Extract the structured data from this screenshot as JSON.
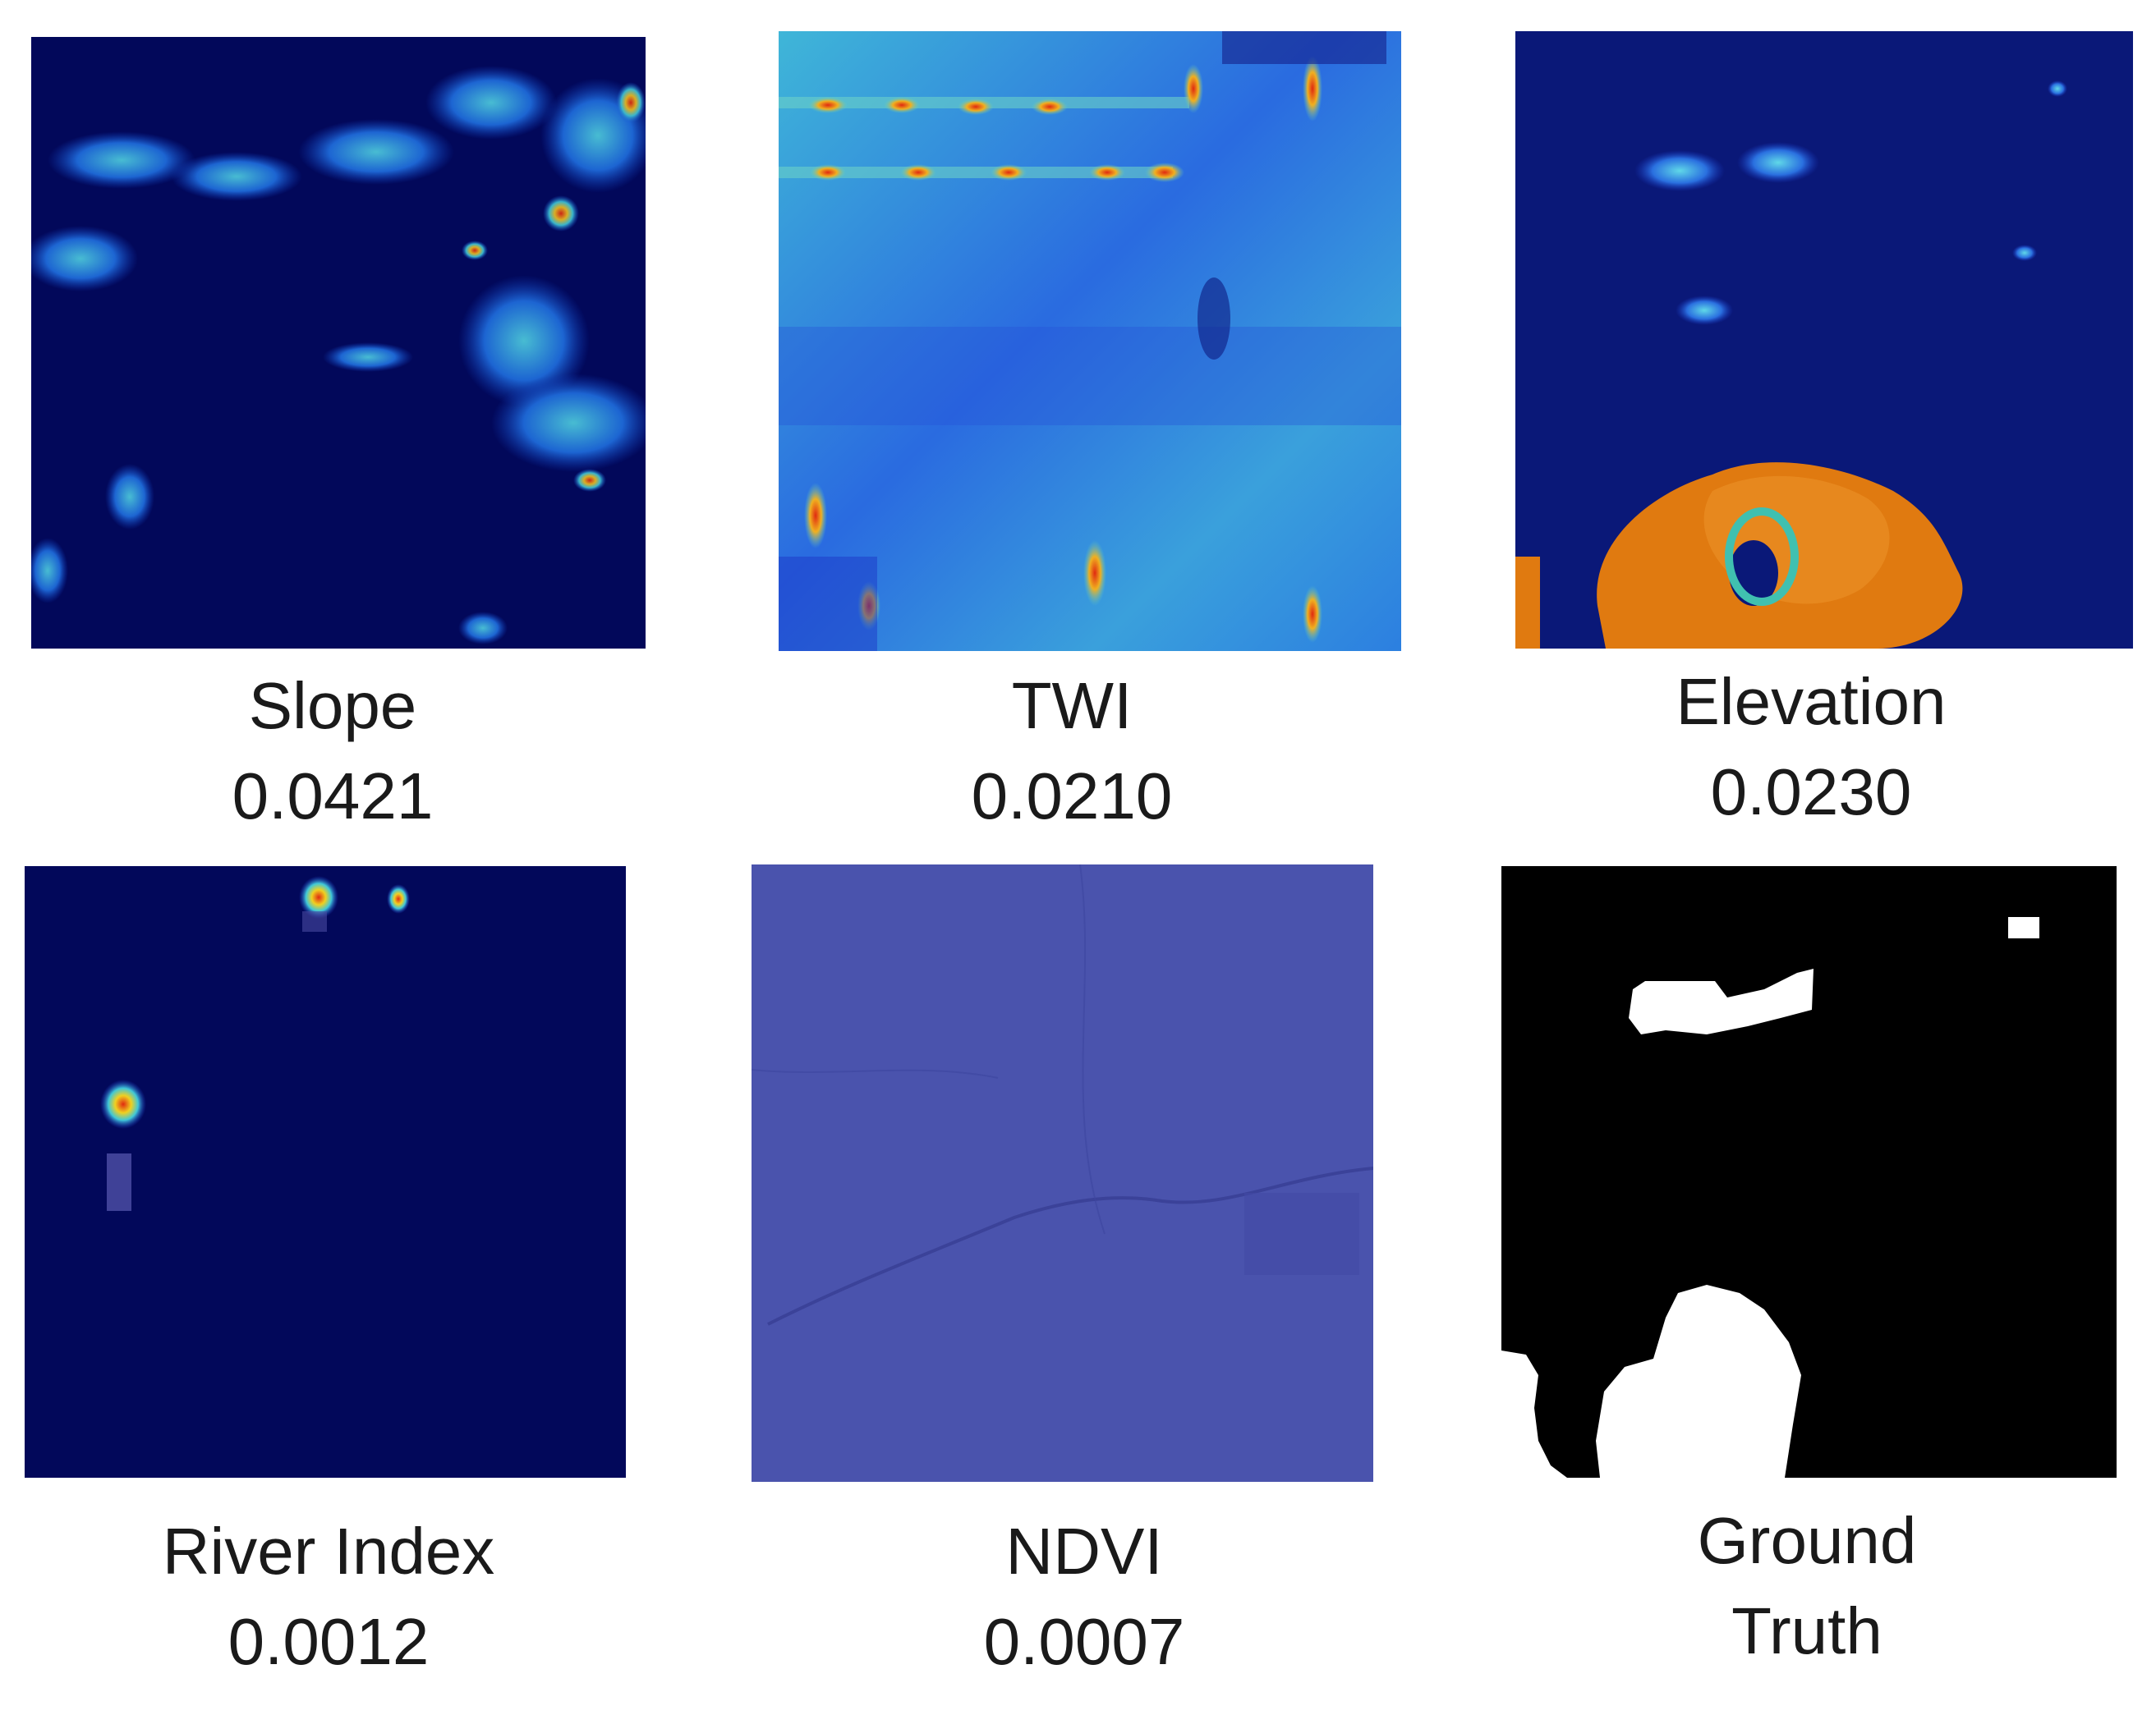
{
  "panels": [
    {
      "id": "slope",
      "label": "Slope",
      "value": "0.0421",
      "colormap": "jet"
    },
    {
      "id": "twi",
      "label": "TWI",
      "value": "0.0210",
      "colormap": "jet"
    },
    {
      "id": "elevation",
      "label": "Elevation",
      "value": "0.0230",
      "colormap": "jet"
    },
    {
      "id": "river-index",
      "label": "River Index",
      "value": "0.0012",
      "colormap": "jet"
    },
    {
      "id": "ndvi",
      "label": "NDVI",
      "value": "0.0007",
      "colormap": "jet"
    },
    {
      "id": "ground-truth",
      "label": "Ground",
      "label_line2": "Truth",
      "colormap": "binary"
    }
  ],
  "colors": {
    "background": "#ffffff",
    "jet_low": "#00005a",
    "jet_mid": "#2a9ad8",
    "jet_high": "#d86a10",
    "ndvi_fill": "#4a53ad",
    "mask_bg": "#000000",
    "mask_fg": "#ffffff"
  }
}
